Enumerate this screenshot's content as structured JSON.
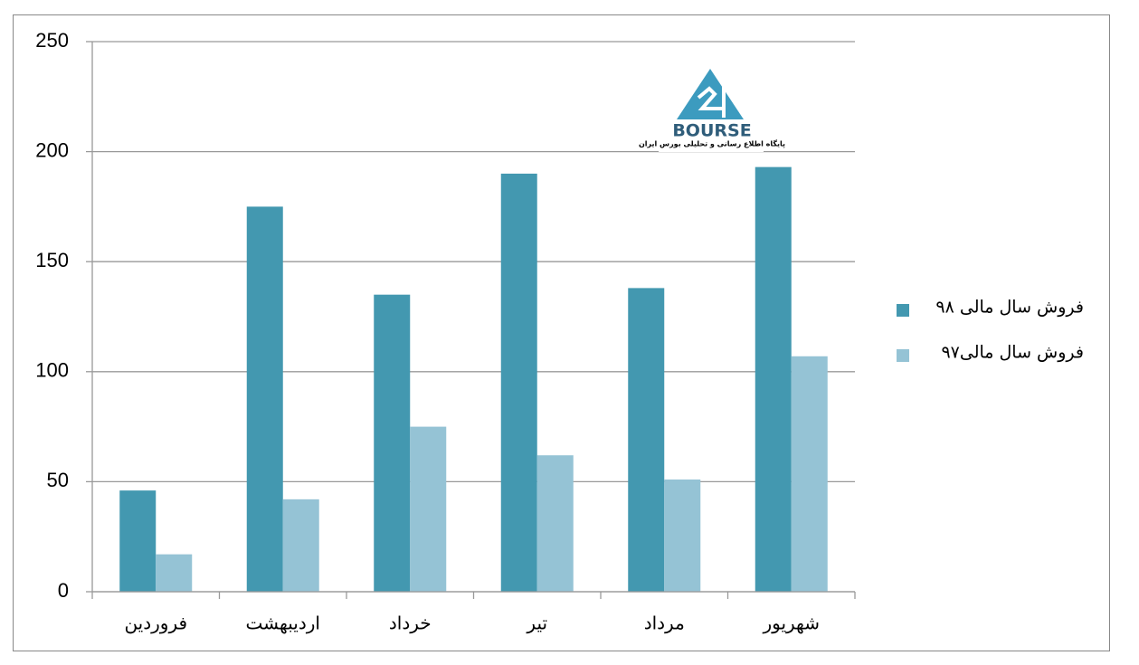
{
  "chart_data": {
    "type": "bar",
    "categories": [
      "فروردین",
      "اردیبهشت",
      "خرداد",
      "تیر",
      "مرداد",
      "شهریور"
    ],
    "series": [
      {
        "name": "فروش سال مالی ۹۸",
        "color": "#4398b0",
        "values": [
          46,
          175,
          135,
          190,
          138,
          193
        ]
      },
      {
        "name": "فروش سال مالی۹۷",
        "color": "#95c3d5",
        "values": [
          17,
          42,
          75,
          62,
          51,
          107
        ]
      }
    ],
    "ylim": [
      0,
      250
    ],
    "yticks": [
      0,
      50,
      100,
      150,
      200,
      250
    ],
    "grid": true,
    "legend": "right"
  },
  "watermark": {
    "brand": "BOURSE",
    "tagline": "پایگاه اطلاع رسانی و تحلیلی بورس ایران"
  }
}
